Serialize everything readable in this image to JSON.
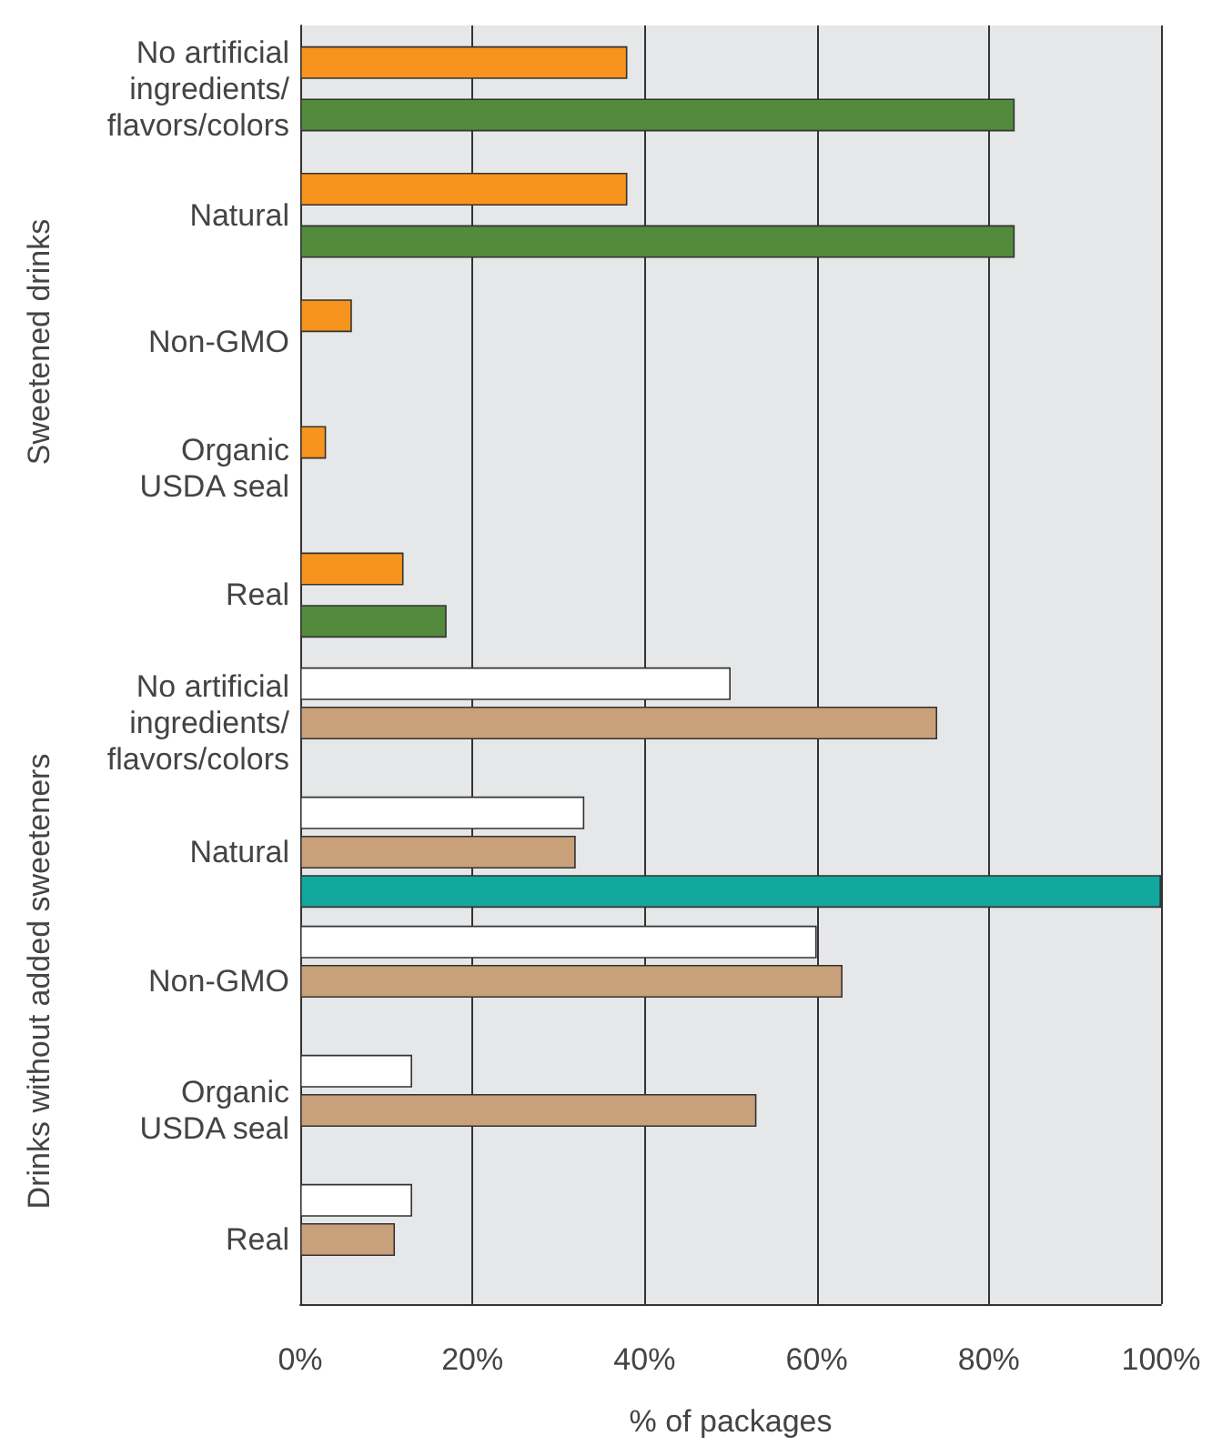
{
  "chart_data": [
    {
      "type": "bar",
      "orientation": "horizontal",
      "ylabel": "Sweetened drinks",
      "categories": [
        "No artificial ingredients/flavors/colors",
        "Natural",
        "Non-GMO",
        "Organic USDA seal",
        "Real"
      ],
      "series": [
        {
          "color": "#f7941d",
          "values": [
            38,
            38,
            6,
            3,
            12
          ]
        },
        {
          "color": "#538a3c",
          "values": [
            83,
            83,
            null,
            null,
            17
          ]
        }
      ],
      "xlim": [
        0,
        100
      ],
      "xticks": [
        0,
        20,
        40,
        60,
        80,
        100
      ],
      "grid": "x",
      "tick_labels": "y"
    },
    {
      "type": "bar",
      "orientation": "horizontal",
      "ylabel": "Drinks without added sweeteners",
      "xlabel": "% of packages",
      "categories": [
        "No artificial ingredients/flavors/colors",
        "Natural",
        "Non-GMO",
        "Organic USDA seal",
        "Real"
      ],
      "series": [
        {
          "color": "#ffffff",
          "values": [
            50,
            33,
            60,
            13,
            13
          ]
        },
        {
          "color": "#c8a07a",
          "values": [
            74,
            32,
            63,
            53,
            11
          ]
        },
        {
          "color": "#13a89e",
          "values": [
            null,
            100,
            null,
            null,
            null
          ]
        }
      ],
      "xlim": [
        0,
        100
      ],
      "xticks": [
        {
          "value": 0,
          "label": "0%"
        },
        {
          "value": 20,
          "label": "20%"
        },
        {
          "value": 40,
          "label": "40%"
        },
        {
          "value": 60,
          "label": "60%"
        },
        {
          "value": 80,
          "label": "80%"
        },
        {
          "value": 100,
          "label": "100%"
        }
      ],
      "grid": "x"
    }
  ]
}
